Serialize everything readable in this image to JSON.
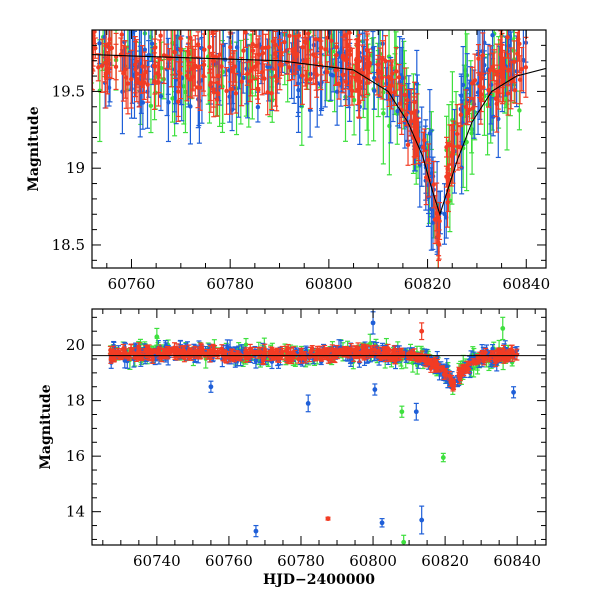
{
  "chart_data": [
    {
      "type": "scatter",
      "panel": "top",
      "xlabel": "",
      "ylabel": "Magnitude",
      "xlim": [
        60752,
        60844
      ],
      "ylim": [
        19.9,
        18.35
      ],
      "y_inverted": true,
      "x_ticks": [
        60760,
        60780,
        60800,
        60820,
        60840
      ],
      "y_ticks": [
        18.5,
        19,
        19.5
      ],
      "colors": {
        "blue": "#1f5fd8",
        "green": "#3ee03e",
        "red": "#f23c24",
        "curve": "#000000"
      },
      "model_curve": {
        "x": [
          60752,
          60770,
          60790,
          60805,
          60812,
          60816,
          60819,
          60821,
          60822.5,
          60824,
          60826,
          60829,
          60833,
          60838,
          60844
        ],
        "y": [
          19.74,
          19.72,
          19.7,
          19.64,
          19.5,
          19.3,
          19.08,
          18.85,
          18.7,
          18.85,
          19.05,
          19.3,
          19.5,
          19.6,
          19.65
        ]
      },
      "series": []
    },
    {
      "type": "scatter",
      "panel": "bottom",
      "xlabel": "HJD−2400000",
      "ylabel": "Magnitude",
      "xlim": [
        60722,
        60848
      ],
      "ylim": [
        21.3,
        12.8
      ],
      "y_inverted": true,
      "x_ticks": [
        60740,
        60760,
        60780,
        60800,
        60820,
        60840
      ],
      "y_ticks": [
        14,
        16,
        18,
        20
      ],
      "colors": {
        "blue": "#1f5fd8",
        "green": "#3ee03e",
        "red": "#f23c24",
        "curve": "#000000"
      },
      "outliers": [
        {
          "x": 60767.5,
          "y": 13.3,
          "err": 0.2,
          "color": "blue"
        },
        {
          "x": 60787.5,
          "y": 13.75,
          "err": 0.05,
          "color": "red"
        },
        {
          "x": 60802.5,
          "y": 13.6,
          "err": 0.15,
          "color": "blue"
        },
        {
          "x": 60808.5,
          "y": 12.9,
          "err": 0.25,
          "color": "green"
        },
        {
          "x": 60813.5,
          "y": 13.7,
          "err": 0.5,
          "color": "blue"
        },
        {
          "x": 60819.5,
          "y": 15.95,
          "err": 0.15,
          "color": "green"
        },
        {
          "x": 60755.0,
          "y": 18.5,
          "err": 0.2,
          "color": "blue"
        },
        {
          "x": 60782.0,
          "y": 17.9,
          "err": 0.3,
          "color": "blue"
        },
        {
          "x": 60808.0,
          "y": 17.6,
          "err": 0.2,
          "color": "green"
        },
        {
          "x": 60812.0,
          "y": 17.6,
          "err": 0.3,
          "color": "blue"
        },
        {
          "x": 60800.5,
          "y": 18.4,
          "err": 0.2,
          "color": "blue"
        },
        {
          "x": 60839.0,
          "y": 18.3,
          "err": 0.2,
          "color": "blue"
        },
        {
          "x": 60800.0,
          "y": 20.8,
          "err": 0.4,
          "color": "blue"
        },
        {
          "x": 60813.5,
          "y": 20.5,
          "err": 0.3,
          "color": "red"
        },
        {
          "x": 60740.0,
          "y": 20.3,
          "err": 0.3,
          "color": "green"
        },
        {
          "x": 60836.0,
          "y": 20.6,
          "err": 0.4,
          "color": "green"
        }
      ],
      "series": []
    }
  ]
}
